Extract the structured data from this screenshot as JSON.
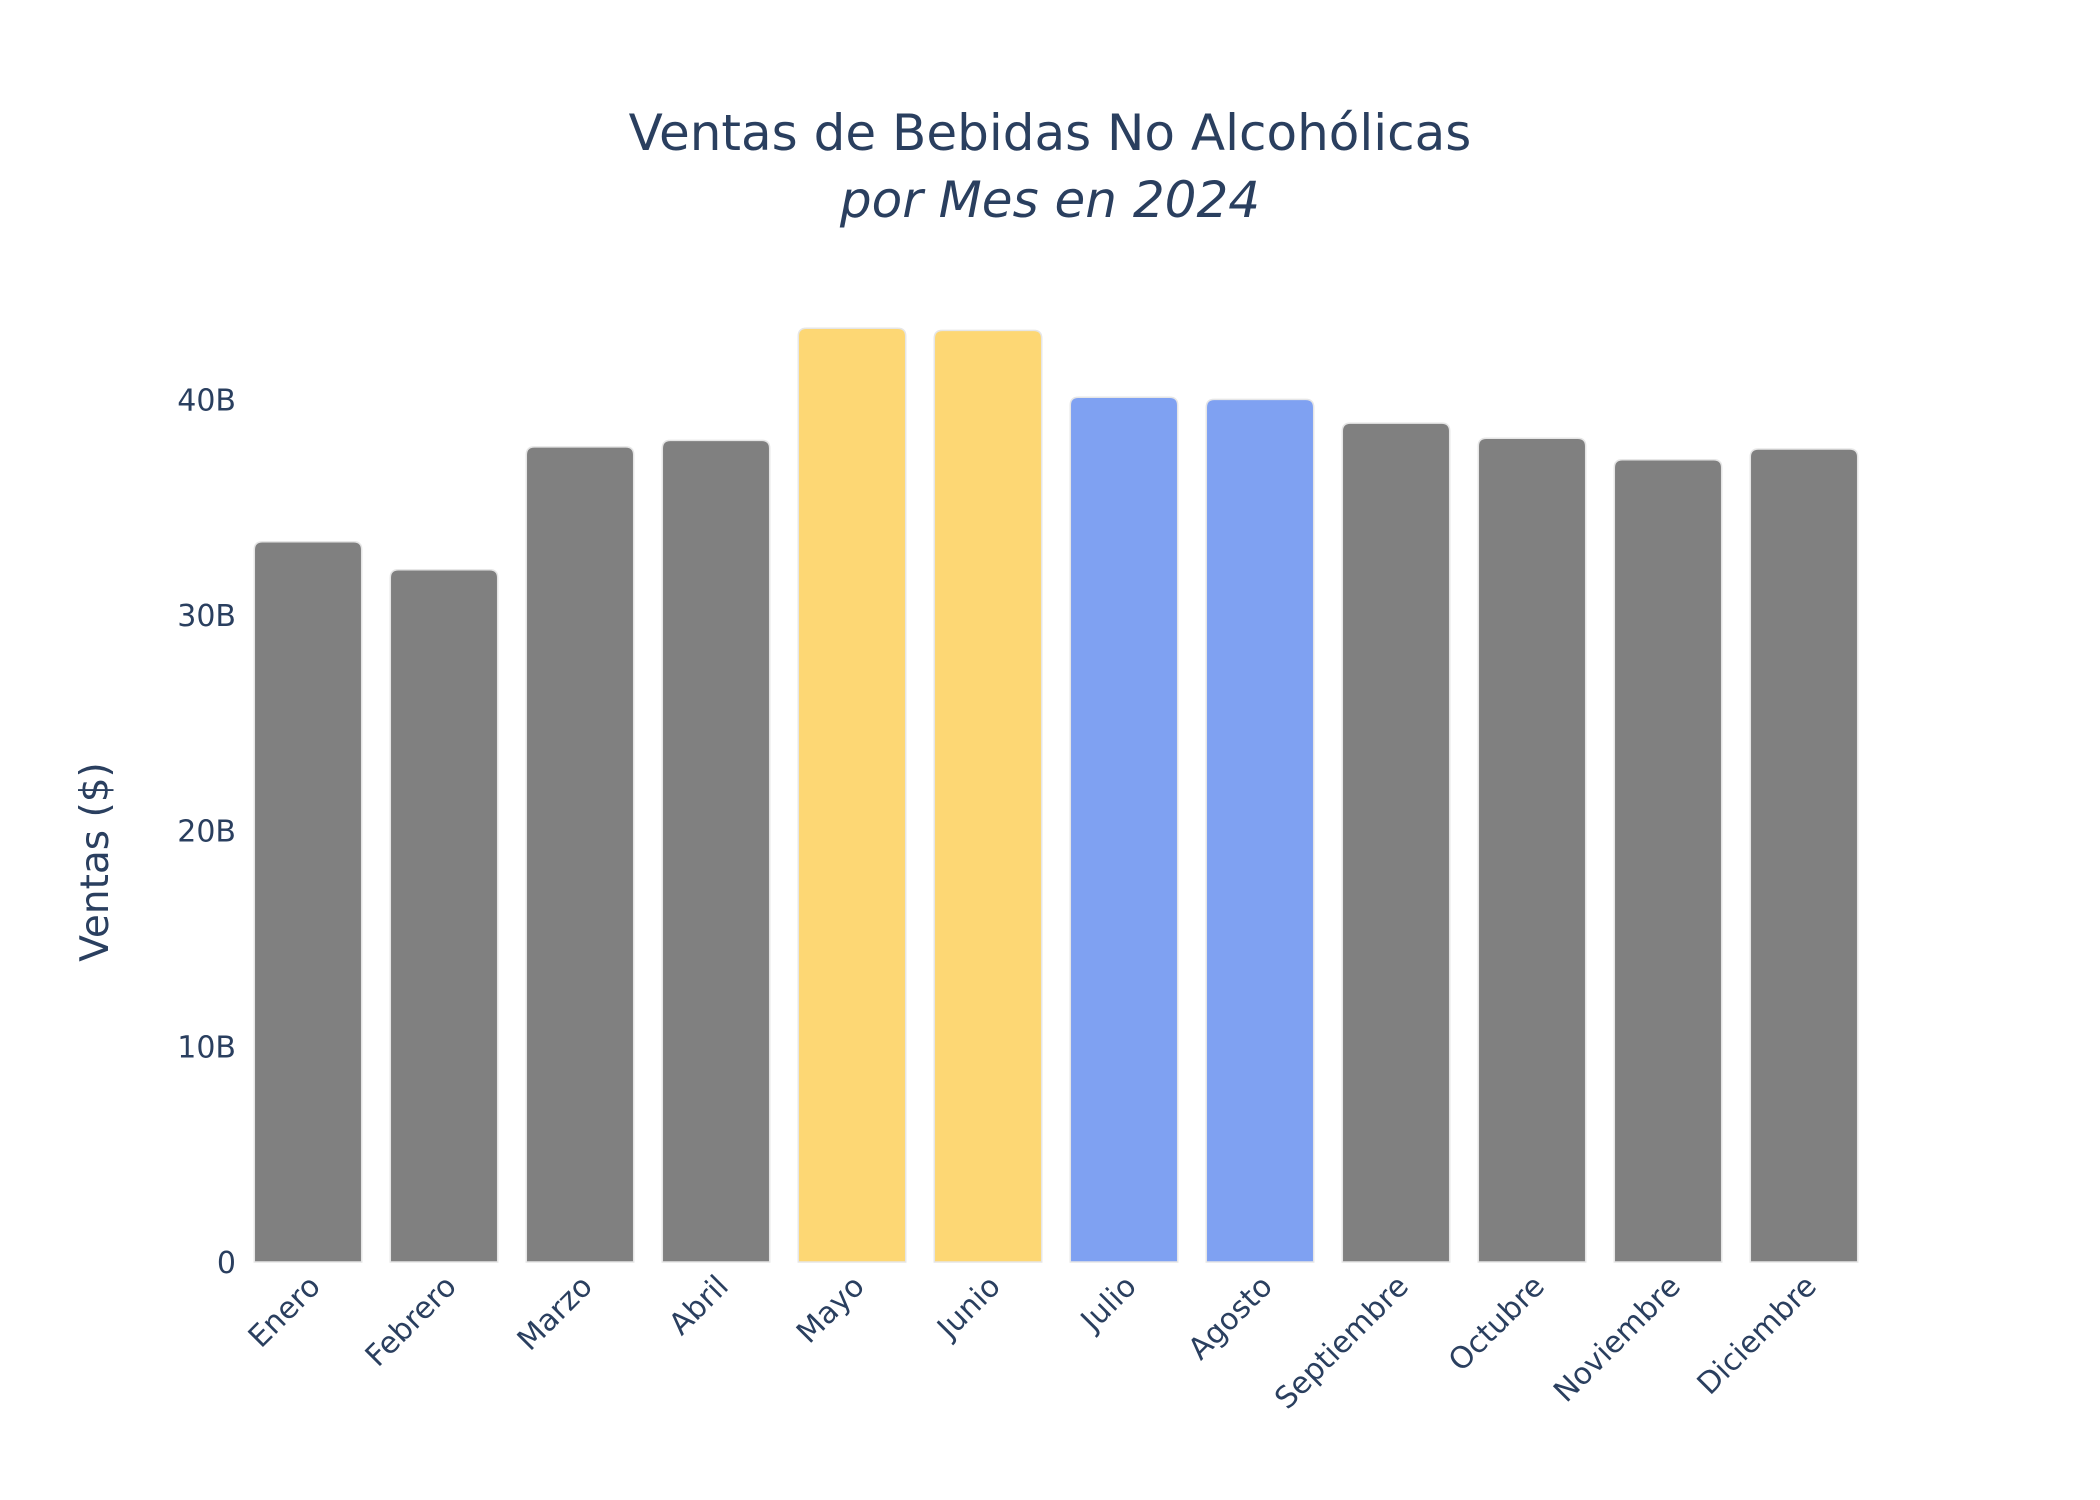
{
  "chart_data": {
    "type": "bar",
    "title": "Ventas de Bebidas No Alcohólicas",
    "subtitle": "por Mes en 2024",
    "xlabel": "",
    "ylabel": "Ventas ($)",
    "ylim": [
      0,
      46
    ],
    "yticks": [
      0,
      10,
      20,
      30,
      40
    ],
    "ytick_labels": [
      "0",
      "10B",
      "20B",
      "30B",
      "40B"
    ],
    "grid": false,
    "categories": [
      "Enero",
      "Febrero",
      "Marzo",
      "Abril",
      "Mayo",
      "Junio",
      "Julio",
      "Agosto",
      "Septiembre",
      "Octubre",
      "Noviembre",
      "Diciembre"
    ],
    "values": [
      33.4,
      32.1,
      37.8,
      38.1,
      43.3,
      43.2,
      40.1,
      40.0,
      38.9,
      38.2,
      37.2,
      37.7
    ],
    "unit": "billions USD",
    "bar_colors": [
      "#808080",
      "#808080",
      "#808080",
      "#808080",
      "#fdd774",
      "#fdd774",
      "#7fa1f2",
      "#7fa1f2",
      "#808080",
      "#808080",
      "#808080",
      "#808080"
    ]
  }
}
